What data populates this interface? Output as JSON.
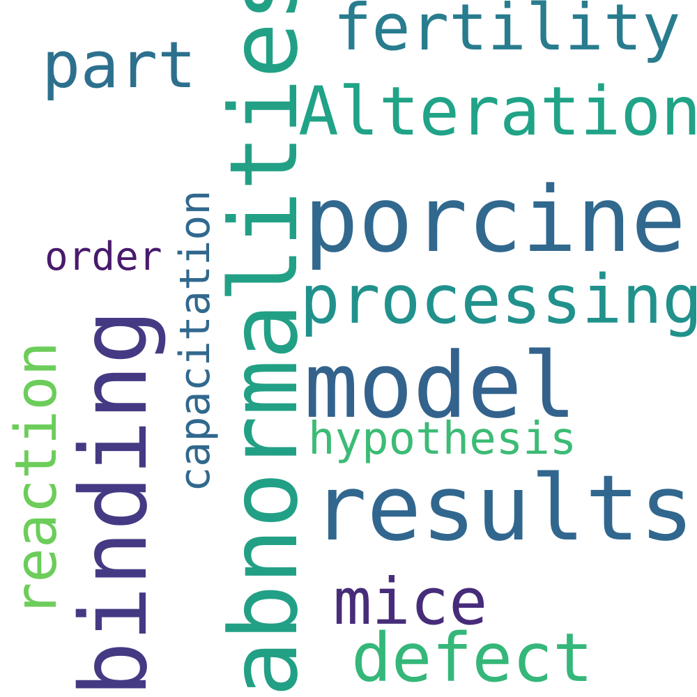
{
  "word_cloud": {
    "words": [
      {
        "text": "fertility",
        "color": "#287c8e",
        "orientation": "horizontal"
      },
      {
        "text": "part",
        "color": "#2d708e",
        "orientation": "horizontal"
      },
      {
        "text": "Alteration",
        "color": "#20a386",
        "orientation": "horizontal"
      },
      {
        "text": "porcine",
        "color": "#31688e",
        "orientation": "horizontal"
      },
      {
        "text": "order",
        "color": "#481a6c",
        "orientation": "horizontal"
      },
      {
        "text": "processing",
        "color": "#21918c",
        "orientation": "horizontal"
      },
      {
        "text": "model",
        "color": "#33638d",
        "orientation": "horizontal"
      },
      {
        "text": "hypothesis",
        "color": "#3cbb75",
        "orientation": "horizontal"
      },
      {
        "text": "results",
        "color": "#31678e",
        "orientation": "horizontal"
      },
      {
        "text": "mice",
        "color": "#472c7a",
        "orientation": "horizontal"
      },
      {
        "text": "defect",
        "color": "#35b779",
        "orientation": "horizontal"
      },
      {
        "text": "reaction",
        "color": "#6ccd5a",
        "orientation": "vertical"
      },
      {
        "text": "binding",
        "color": "#443a83",
        "orientation": "vertical"
      },
      {
        "text": "capacitation",
        "color": "#31688e",
        "orientation": "vertical"
      },
      {
        "text": "abnormalities",
        "color": "#22a085",
        "orientation": "vertical"
      }
    ]
  }
}
